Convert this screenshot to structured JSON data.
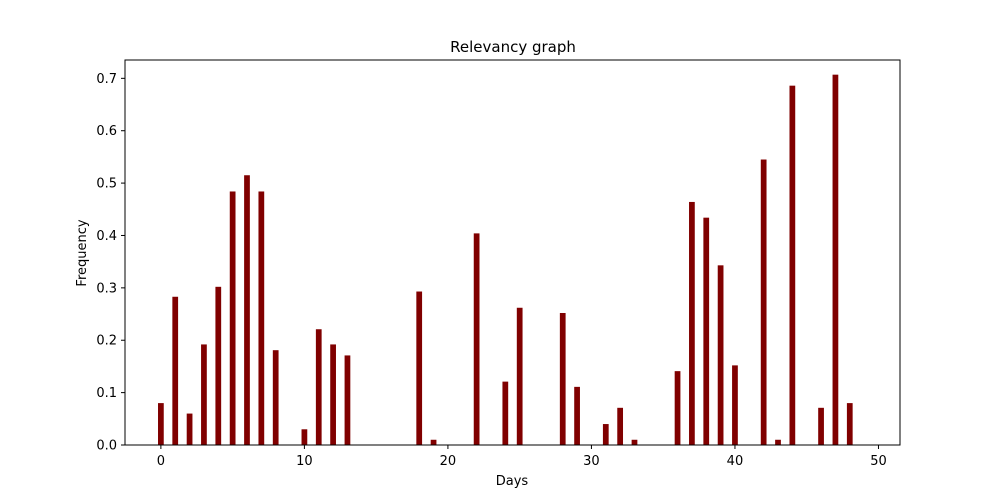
{
  "chart_data": {
    "type": "bar",
    "title": "Relevancy graph",
    "xlabel": "Days",
    "ylabel": "Frequency",
    "xlim": [
      -2.5,
      51.5
    ],
    "ylim": [
      0,
      0.735
    ],
    "xticks": [
      0,
      10,
      20,
      30,
      40,
      50
    ],
    "xtick_labels": [
      "0",
      "10",
      "20",
      "30",
      "40",
      "50"
    ],
    "yticks": [
      0.0,
      0.1,
      0.2,
      0.3,
      0.4,
      0.5,
      0.6,
      0.7
    ],
    "ytick_labels": [
      "0.0",
      "0.1",
      "0.2",
      "0.3",
      "0.4",
      "0.5",
      "0.6",
      "0.7"
    ],
    "grid": false,
    "bar_color": "#800000",
    "bar_width": 0.4,
    "x": [
      0,
      1,
      2,
      3,
      4,
      5,
      6,
      7,
      8,
      10,
      11,
      12,
      13,
      18,
      19,
      22,
      24,
      25,
      28,
      29,
      31,
      32,
      33,
      36,
      37,
      38,
      39,
      40,
      42,
      43,
      44,
      46,
      47,
      48
    ],
    "values": [
      0.08,
      0.283,
      0.06,
      0.192,
      0.302,
      0.484,
      0.515,
      0.484,
      0.181,
      0.03,
      0.221,
      0.192,
      0.171,
      0.293,
      0.01,
      0.404,
      0.121,
      0.262,
      0.252,
      0.111,
      0.04,
      0.071,
      0.01,
      0.141,
      0.464,
      0.434,
      0.343,
      0.152,
      0.545,
      0.01,
      0.686,
      0.071,
      0.707,
      0.08
    ]
  }
}
